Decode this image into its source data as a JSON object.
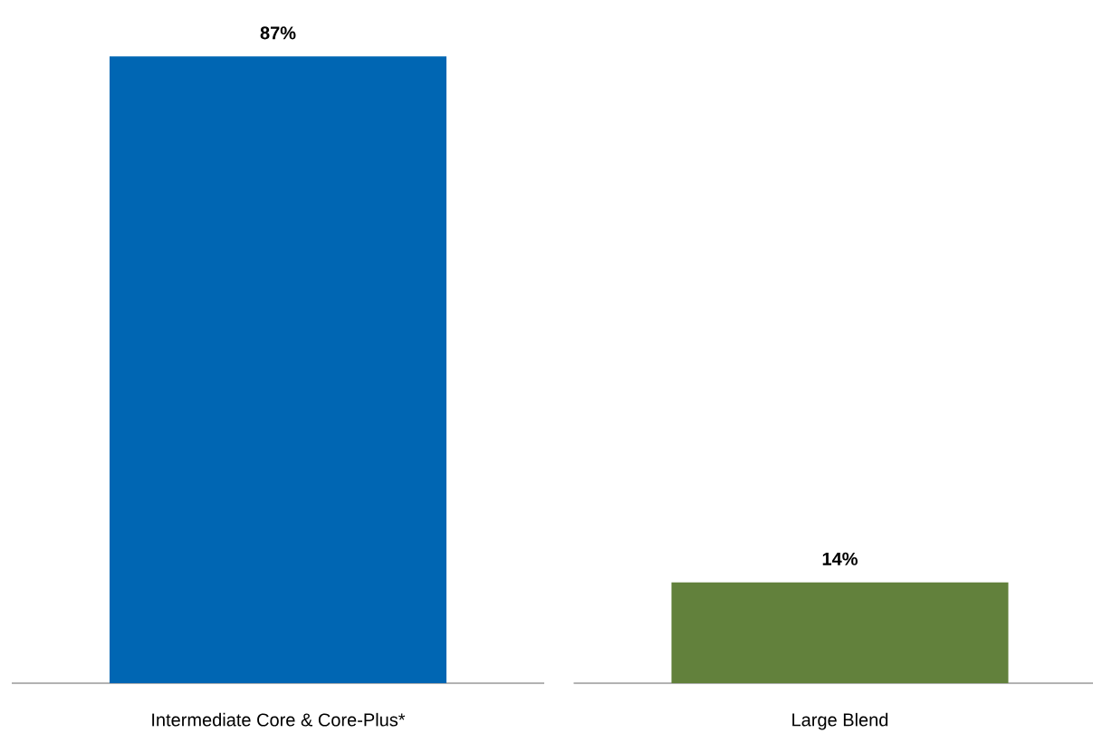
{
  "chart_data": {
    "type": "bar",
    "categories": [
      "Intermediate Core & Core-Plus*",
      "Large Blend"
    ],
    "values": [
      87,
      14
    ],
    "colors": [
      "#0066b3",
      "#62813c"
    ],
    "value_labels": [
      "87%",
      "14%"
    ]
  }
}
